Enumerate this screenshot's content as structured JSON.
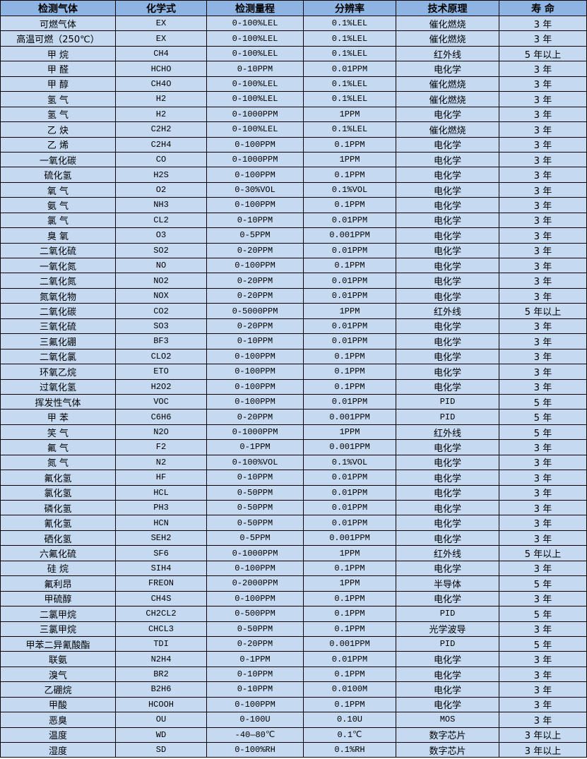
{
  "table": {
    "headers": [
      "检测气体",
      "化学式",
      "检测量程",
      "分辨率",
      "技术原理",
      "寿 命"
    ],
    "rows": [
      [
        "可燃气体",
        "EX",
        "0-100%LEL",
        "0.1%LEL",
        "催化燃烧",
        "3 年"
      ],
      [
        "高温可燃（250℃）",
        "EX",
        "0-100%LEL",
        "0.1%LEL",
        "催化燃烧",
        "3 年"
      ],
      [
        "甲 烷",
        "CH4",
        "0-100%LEL",
        "0.1%LEL",
        "红外线",
        "5 年以上"
      ],
      [
        "甲 醛",
        "HCHO",
        "0-10PPM",
        "0.01PPM",
        "电化学",
        "3 年"
      ],
      [
        "甲 醇",
        "CH4O",
        "0-100%LEL",
        "0.1%LEL",
        "催化燃烧",
        "3 年"
      ],
      [
        "氢 气",
        "H2",
        "0-100%LEL",
        "0.1%LEL",
        "催化燃烧",
        "3 年"
      ],
      [
        "氢 气",
        "H2",
        "0-1000PPM",
        "1PPM",
        "电化学",
        "3 年"
      ],
      [
        "乙 炔",
        "C2H2",
        "0-100%LEL",
        "0.1%LEL",
        "催化燃烧",
        "3 年"
      ],
      [
        "乙 烯",
        "C2H4",
        "0-100PPM",
        "0.1PPM",
        "电化学",
        "3 年"
      ],
      [
        "一氧化碳",
        "CO",
        "0-1000PPM",
        "1PPM",
        "电化学",
        "3 年"
      ],
      [
        "硫化氢",
        "H2S",
        "0-100PPM",
        "0.1PPM",
        "电化学",
        "3 年"
      ],
      [
        "氧 气",
        "O2",
        "0-30%VOL",
        "0.1%VOL",
        "电化学",
        "3 年"
      ],
      [
        "氨 气",
        "NH3",
        "0-100PPM",
        "0.1PPM",
        "电化学",
        "3 年"
      ],
      [
        "氯 气",
        "CL2",
        "0-10PPM",
        "0.01PPM",
        "电化学",
        "3 年"
      ],
      [
        "臭 氧",
        "O3",
        "0-5PPM",
        "0.001PPM",
        "电化学",
        "3 年"
      ],
      [
        "二氧化硫",
        "SO2",
        "0-20PPM",
        "0.01PPM",
        "电化学",
        "3 年"
      ],
      [
        "一氧化氮",
        "NO",
        "0-100PPM",
        "0.1PPM",
        "电化学",
        "3 年"
      ],
      [
        "二氧化氮",
        "NO2",
        "0-20PPM",
        "0.01PPM",
        "电化学",
        "3 年"
      ],
      [
        "氮氧化物",
        "NOX",
        "0-20PPM",
        "0.01PPM",
        "电化学",
        "3 年"
      ],
      [
        "二氧化碳",
        "CO2",
        "0-5000PPM",
        "1PPM",
        "红外线",
        "5 年以上"
      ],
      [
        "三氧化硫",
        "SO3",
        "0-20PPM",
        "0.01PPM",
        "电化学",
        "3 年"
      ],
      [
        "三氟化硼",
        "BF3",
        "0-10PPM",
        "0.01PPM",
        "电化学",
        "3 年"
      ],
      [
        "二氧化氯",
        "CLO2",
        "0-100PPM",
        "0.1PPM",
        "电化学",
        "3 年"
      ],
      [
        "环氧乙烷",
        "ETO",
        "0-100PPM",
        "0.1PPM",
        "电化学",
        "3 年"
      ],
      [
        "过氧化氢",
        "H2O2",
        "0-100PPM",
        "0.1PPM",
        "电化学",
        "3 年"
      ],
      [
        "挥发性气体",
        "VOC",
        "0-100PPM",
        "0.01PPM",
        "PID",
        "5 年"
      ],
      [
        "甲 苯",
        "C6H6",
        "0-20PPM",
        "0.001PPM",
        "PID",
        "5 年"
      ],
      [
        "笑 气",
        "N2O",
        "0-1000PPM",
        "1PPM",
        "红外线",
        "5 年"
      ],
      [
        "氟 气",
        "F2",
        "0-1PPM",
        "0.001PPM",
        "电化学",
        "3 年"
      ],
      [
        "氮 气",
        "N2",
        "0-100%VOL",
        "0.1%VOL",
        "电化学",
        "3 年"
      ],
      [
        "氟化氢",
        "HF",
        "0-10PPM",
        "0.01PPM",
        "电化学",
        "3 年"
      ],
      [
        "氯化氢",
        "HCL",
        "0-50PPM",
        "0.01PPM",
        "电化学",
        "3 年"
      ],
      [
        "磷化氢",
        "PH3",
        "0-50PPM",
        "0.01PPM",
        "电化学",
        "3 年"
      ],
      [
        "氰化氢",
        "HCN",
        "0-50PPM",
        "0.01PPM",
        "电化学",
        "3 年"
      ],
      [
        "硒化氢",
        "SEH2",
        "0-5PPM",
        "0.001PPM",
        "电化学",
        "3 年"
      ],
      [
        "六氟化硫",
        "SF6",
        "0-1000PPM",
        "1PPM",
        "红外线",
        "5 年以上"
      ],
      [
        "硅 烷",
        "SIH4",
        "0-100PPM",
        "0.1PPM",
        "电化学",
        "3 年"
      ],
      [
        "氟利昂",
        "FREON",
        "0-2000PPM",
        "1PPM",
        "半导体",
        "5 年"
      ],
      [
        "甲硫醇",
        "CH4S",
        "0-100PPM",
        "0.1PPM",
        "电化学",
        "3 年"
      ],
      [
        "二氯甲烷",
        "CH2CL2",
        "0-500PPM",
        "0.1PPM",
        "PID",
        "5 年"
      ],
      [
        "三氯甲烷",
        "CHCL3",
        "0-50PPM",
        "0.1PPM",
        "光学波导",
        "3 年"
      ],
      [
        "甲苯二异氰酸酯",
        "TDI",
        "0-20PPM",
        "0.001PPM",
        "PID",
        "5 年"
      ],
      [
        "联氨",
        "N2H4",
        "0-1PPM",
        "0.01PPM",
        "电化学",
        "3 年"
      ],
      [
        "溴气",
        "BR2",
        "0-10PPM",
        "0.1PPM",
        "电化学",
        "3 年"
      ],
      [
        "乙硼烷",
        "B2H6",
        "0-10PPM",
        "0.0100M",
        "电化学",
        "3 年"
      ],
      [
        "甲酸",
        "HCOOH",
        "0-100PPM",
        "0.1PPM",
        "电化学",
        "3 年"
      ],
      [
        "恶臭",
        "OU",
        "0-100U",
        "0.10U",
        "MOS",
        "3 年"
      ],
      [
        "温度",
        "WD",
        "-40—80℃",
        "0.1℃",
        "数字芯片",
        "3 年以上"
      ],
      [
        "湿度",
        "SD",
        "0-100%RH",
        "0.1%RH",
        "数字芯片",
        "3 年以上"
      ]
    ]
  }
}
